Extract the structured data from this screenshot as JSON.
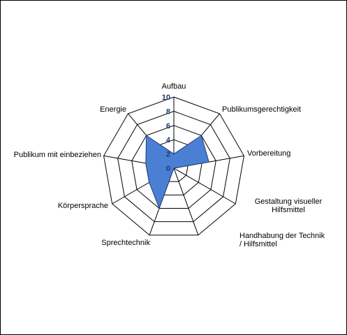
{
  "chart_data": {
    "type": "radar",
    "title": "",
    "rmin": 0,
    "rmax": 10,
    "ticks": [
      0,
      2,
      4,
      6,
      8,
      10
    ],
    "tick_labels": [
      "0",
      "2",
      "4",
      "6",
      "8",
      "10"
    ],
    "categories": [
      "Aufbau",
      "Publikumsgerechtigkeit",
      "Vorbereitung",
      "Gestaltung visueller Hilfsmittel",
      "Handhabung der Technik / Hilfsmittel",
      "Sprechtechnik",
      "Körpersprache",
      "Publikum mit einbeziehen",
      "Energie"
    ],
    "series": [
      {
        "values": [
          2,
          6,
          5,
          0,
          0,
          6,
          4,
          4,
          6
        ],
        "color": "#4a7fd4"
      }
    ],
    "grid": true,
    "legend": "none"
  }
}
